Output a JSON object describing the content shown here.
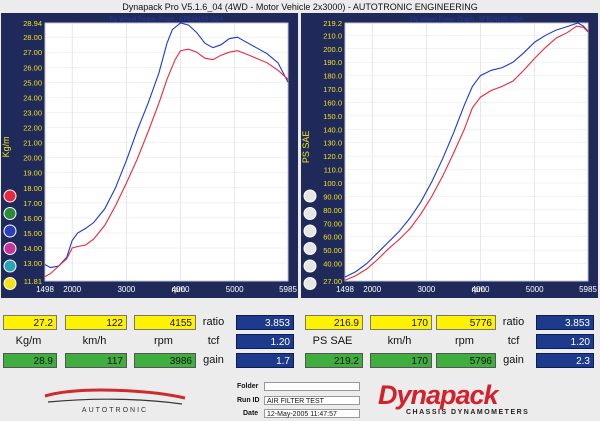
{
  "title": "Dynapack Pro V5.1.6_04 (4WD - Motor Vehicle 2x3000) - AUTOTRONIC ENGINEERING",
  "chart_data": [
    {
      "type": "line",
      "title": "Fly Wheel Torque Graph : SFB2415S-GDA",
      "ylabel": "Kg/m",
      "xlabel": "rpm",
      "xlim": [
        1498,
        5985
      ],
      "ylim": [
        11.81,
        28.94
      ],
      "x_ticks": [
        "1498",
        "2000",
        "3000",
        "4000",
        "5000",
        "5985"
      ],
      "y_ticks": [
        "28.94",
        "28.00",
        "27.00",
        "26.00",
        "25.00",
        "24.00",
        "23.00",
        "22.00",
        "21.00",
        "20.00",
        "19.00",
        "18.00",
        "17.00",
        "16.00",
        "15.00",
        "14.00",
        "13.00",
        "11.81"
      ],
      "series": [
        {
          "color": "#1a3ad0",
          "points": [
            [
              1498,
              12.9
            ],
            [
              1600,
              12.7
            ],
            [
              1750,
              12.8
            ],
            [
              1900,
              13.4
            ],
            [
              2000,
              14.5
            ],
            [
              2100,
              15.0
            ],
            [
              2250,
              15.3
            ],
            [
              2400,
              15.7
            ],
            [
              2600,
              16.6
            ],
            [
              2800,
              18.0
            ],
            [
              3000,
              19.8
            ],
            [
              3200,
              21.8
            ],
            [
              3400,
              23.6
            ],
            [
              3600,
              25.6
            ],
            [
              3750,
              27.6
            ],
            [
              3850,
              28.5
            ],
            [
              4000,
              28.94
            ],
            [
              4150,
              28.8
            ],
            [
              4300,
              28.3
            ],
            [
              4450,
              27.6
            ],
            [
              4600,
              27.3
            ],
            [
              4750,
              27.5
            ],
            [
              4900,
              27.9
            ],
            [
              5050,
              28.0
            ],
            [
              5200,
              27.7
            ],
            [
              5400,
              27.3
            ],
            [
              5600,
              26.9
            ],
            [
              5800,
              26.3
            ],
            [
              5985,
              25.0
            ]
          ]
        },
        {
          "color": "#e8283c",
          "points": [
            [
              1498,
              12.1
            ],
            [
              1600,
              12.3
            ],
            [
              1750,
              12.8
            ],
            [
              1900,
              13.3
            ],
            [
              2000,
              14.0
            ],
            [
              2100,
              14.1
            ],
            [
              2250,
              14.2
            ],
            [
              2400,
              14.6
            ],
            [
              2600,
              15.5
            ],
            [
              2800,
              16.8
            ],
            [
              3000,
              18.3
            ],
            [
              3200,
              19.9
            ],
            [
              3400,
              21.7
            ],
            [
              3600,
              23.6
            ],
            [
              3750,
              25.2
            ],
            [
              3900,
              26.5
            ],
            [
              4000,
              27.1
            ],
            [
              4150,
              27.2
            ],
            [
              4300,
              27.0
            ],
            [
              4450,
              26.6
            ],
            [
              4600,
              26.5
            ],
            [
              4750,
              26.8
            ],
            [
              4900,
              27.0
            ],
            [
              5050,
              27.1
            ],
            [
              5200,
              26.9
            ],
            [
              5400,
              26.6
            ],
            [
              5600,
              26.3
            ],
            [
              5800,
              25.8
            ],
            [
              5985,
              25.2
            ]
          ]
        }
      ]
    },
    {
      "type": "line",
      "title": "Fly Wheel Power Graph : SFB2415S-GDA",
      "ylabel": "PS SAE",
      "xlabel": "rpm",
      "xlim": [
        1498,
        5985
      ],
      "ylim": [
        27.0,
        219.2
      ],
      "x_ticks": [
        "1498",
        "2000",
        "3000",
        "4000",
        "5000",
        "5985"
      ],
      "y_ticks": [
        "219.2",
        "210.0",
        "200.0",
        "190.0",
        "180.0",
        "170.0",
        "160.0",
        "150.0",
        "140.0",
        "130.0",
        "120.0",
        "110.0",
        "100.0",
        "90.00",
        "80.00",
        "70.00",
        "60.00",
        "50.00",
        "40.00",
        "27.00"
      ],
      "series": [
        {
          "color": "#1a3ad0",
          "points": [
            [
              1498,
              30.0
            ],
            [
              1700,
              34.0
            ],
            [
              1900,
              40.0
            ],
            [
              2100,
              48.0
            ],
            [
              2300,
              56.0
            ],
            [
              2500,
              64.0
            ],
            [
              2700,
              74.0
            ],
            [
              2900,
              86.0
            ],
            [
              3100,
              101.0
            ],
            [
              3300,
              118.0
            ],
            [
              3500,
              137.0
            ],
            [
              3700,
              158.0
            ],
            [
              3850,
              172.0
            ],
            [
              4000,
              180.0
            ],
            [
              4200,
              184.0
            ],
            [
              4400,
              186.0
            ],
            [
              4600,
              190.0
            ],
            [
              4800,
              197.0
            ],
            [
              5000,
              205.0
            ],
            [
              5200,
              210.0
            ],
            [
              5400,
              214.0
            ],
            [
              5600,
              216.5
            ],
            [
              5796,
              219.2
            ],
            [
              5900,
              217.0
            ],
            [
              5985,
              213.0
            ]
          ]
        },
        {
          "color": "#e8283c",
          "points": [
            [
              1498,
              27.5
            ],
            [
              1700,
              31.0
            ],
            [
              1900,
              36.0
            ],
            [
              2100,
              43.0
            ],
            [
              2300,
              51.0
            ],
            [
              2500,
              58.0
            ],
            [
              2700,
              66.0
            ],
            [
              2900,
              77.0
            ],
            [
              3100,
              90.0
            ],
            [
              3300,
              105.0
            ],
            [
              3500,
              122.0
            ],
            [
              3700,
              140.0
            ],
            [
              3850,
              156.0
            ],
            [
              4000,
              164.0
            ],
            [
              4200,
              169.0
            ],
            [
              4400,
              172.0
            ],
            [
              4600,
              176.0
            ],
            [
              4800,
              184.0
            ],
            [
              5000,
              193.0
            ],
            [
              5200,
              201.0
            ],
            [
              5400,
              208.0
            ],
            [
              5600,
              212.0
            ],
            [
              5776,
              216.9
            ],
            [
              5900,
              216.0
            ],
            [
              5985,
              212.5
            ]
          ]
        }
      ]
    }
  ],
  "readout": {
    "torque": {
      "val1": "27.2",
      "speed1": "122",
      "rpm1": "4155",
      "unit": "Kg/m",
      "speed_unit": "km/h",
      "rpm_unit": "rpm",
      "val2": "28.9",
      "speed2": "117",
      "rpm2": "3986",
      "ratio_label": "ratio",
      "ratio": "3.853",
      "tcf_label": "tcf",
      "tcf": "1.20",
      "gain_label": "gain",
      "gain": "1.7"
    },
    "power": {
      "val1": "216.9",
      "speed1": "170",
      "rpm1": "5776",
      "unit": "PS SAE",
      "speed_unit": "km/h",
      "rpm_unit": "rpm",
      "val2": "219.2",
      "speed2": "170",
      "rpm2": "5796",
      "ratio_label": "ratio",
      "ratio": "3.853",
      "tcf_label": "tcf",
      "tcf": "1.20",
      "gain_label": "gain",
      "gain": "2.3"
    }
  },
  "footer": {
    "folder_label": "Folder",
    "folder": "",
    "run_label": "Run ID",
    "run": "AIR FILTER TEST",
    "date_label": "Date",
    "date": "12-May-2005  11:47:57",
    "brand": "Dynapack",
    "brand_sub": "CHASSIS DYNAMOMETERS",
    "left_logo": "AUTOTRONIC"
  },
  "colors": {
    "run1": "#1a3ad0",
    "run2": "#e8283c",
    "panel": "#1f2a5a"
  }
}
